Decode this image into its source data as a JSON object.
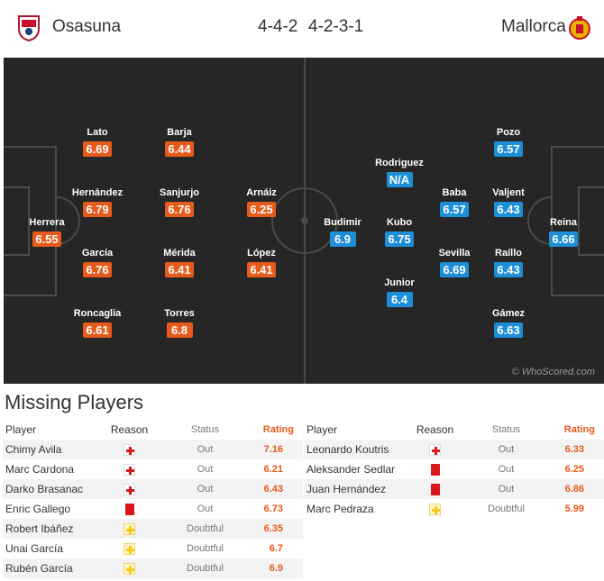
{
  "match": {
    "home": {
      "name": "Osasuna",
      "formation": "4-4-2",
      "crest": "osasuna-crest-icon",
      "color": "#e65a1b"
    },
    "away": {
      "name": "Mallorca",
      "formation": "4-2-3-1",
      "crest": "mallorca-crest-icon",
      "color": "#1d8ed8"
    }
  },
  "lineups": {
    "home": [
      {
        "name": "Herrera",
        "rating": "6.55"
      },
      {
        "name": "Lato",
        "rating": "6.69"
      },
      {
        "name": "Hernández",
        "rating": "6.79"
      },
      {
        "name": "García",
        "rating": "6.76"
      },
      {
        "name": "Roncaglia",
        "rating": "6.61"
      },
      {
        "name": "Barja",
        "rating": "6.44"
      },
      {
        "name": "Sanjurjo",
        "rating": "6.76"
      },
      {
        "name": "Mérida",
        "rating": "6.41"
      },
      {
        "name": "Torres",
        "rating": "6.8"
      },
      {
        "name": "Arnáiz",
        "rating": "6.25"
      },
      {
        "name": "López",
        "rating": "6.41"
      }
    ],
    "away": [
      {
        "name": "Reina",
        "rating": "6.66"
      },
      {
        "name": "Pozo",
        "rating": "6.57"
      },
      {
        "name": "Valjent",
        "rating": "6.43"
      },
      {
        "name": "Raíllo",
        "rating": "6.43"
      },
      {
        "name": "Gámez",
        "rating": "6.63"
      },
      {
        "name": "Baba",
        "rating": "6.57"
      },
      {
        "name": "Sevilla",
        "rating": "6.69"
      },
      {
        "name": "Rodriguez",
        "rating": "N/A"
      },
      {
        "name": "Kubo",
        "rating": "6.75"
      },
      {
        "name": "Junior",
        "rating": "6.4"
      },
      {
        "name": "Budimir",
        "rating": "6.9"
      }
    ]
  },
  "watermark": "© WhoScored.com",
  "missing": {
    "title": "Missing Players",
    "headers": {
      "player": "Player",
      "reason": "Reason",
      "status": "Status",
      "rating": "Rating"
    },
    "home": [
      {
        "player": "Chimy Avila",
        "reason": "injury",
        "status": "Out",
        "rating": "7.16"
      },
      {
        "player": "Marc Cardona",
        "reason": "injury",
        "status": "Out",
        "rating": "6.21"
      },
      {
        "player": "Darko Brasanac",
        "reason": "injury",
        "status": "Out",
        "rating": "6.43"
      },
      {
        "player": "Enric Gallego",
        "reason": "red-card",
        "status": "Out",
        "rating": "6.73"
      },
      {
        "player": "Robert Ibáñez",
        "reason": "doubtful",
        "status": "Doubtful",
        "rating": "6.35"
      },
      {
        "player": "Unai García",
        "reason": "doubtful",
        "status": "Doubtful",
        "rating": "6.7"
      },
      {
        "player": "Rubén García",
        "reason": "doubtful",
        "status": "Doubtful",
        "rating": "6.9"
      }
    ],
    "away": [
      {
        "player": "Leonardo Koutris",
        "reason": "injury",
        "status": "Out",
        "rating": "6.33"
      },
      {
        "player": "Aleksander Sedlar",
        "reason": "red-card",
        "status": "Out",
        "rating": "6.25"
      },
      {
        "player": "Juan Hernández",
        "reason": "red-card",
        "status": "Out",
        "rating": "6.86"
      },
      {
        "player": "Marc Pedraza",
        "reason": "doubtful",
        "status": "Doubtful",
        "rating": "5.99"
      }
    ]
  }
}
